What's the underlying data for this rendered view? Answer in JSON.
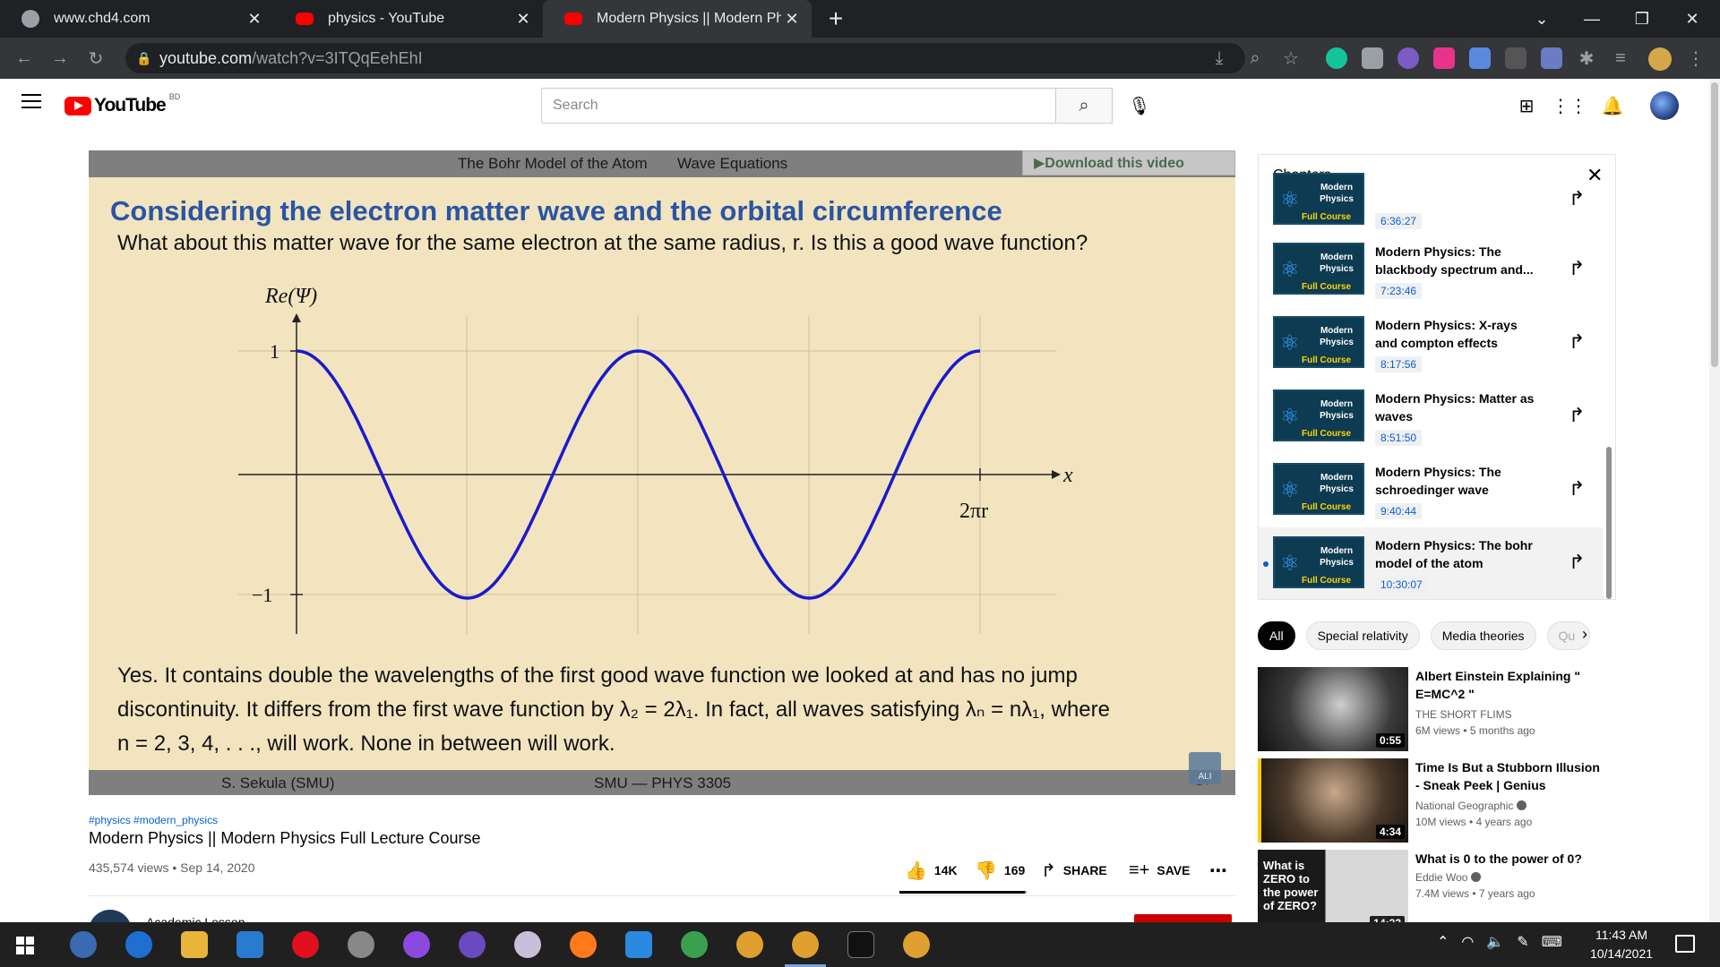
{
  "browser": {
    "tabs": [
      {
        "title": "www.chd4.com",
        "favicon": "globe-icon"
      },
      {
        "title": "physics - YouTube",
        "favicon": "youtube-icon"
      },
      {
        "title": "Modern Physics || Modern Physic",
        "favicon": "youtube-icon",
        "active": true
      }
    ],
    "new_tab": "+",
    "url_host": "youtube.com",
    "url_path": "/watch?v=3ITQqEehEhI"
  },
  "youtube": {
    "logo_text": "YouTube",
    "country_code": "BD",
    "search_placeholder": "Search"
  },
  "slide": {
    "nav_left": "The Bohr Model of the Atom",
    "nav_right": "Wave Equations",
    "download_label": "▶Download this video",
    "title": "Considering the electron matter wave and the orbital circumference",
    "question": "What about this matter wave for the same electron at the same radius, r. Is this a good wave function?",
    "answer_lines": [
      "Yes. It contains double the wavelengths of the first good wave function we looked at and has no jump",
      "discontinuity. It differs from the first wave function by λ₂ = 2λ₁. In fact, all waves satisfying λₙ = nλ₁, where",
      "n = 2, 3, 4, . . ., will work. None in between will work."
    ],
    "footer_left": "S. Sekula  (SMU)",
    "footer_center": "SMU — PHYS 3305",
    "page_number": "14",
    "badge_text": "ALI"
  },
  "chart_data": {
    "type": "line",
    "ylabel": "Re(Ψ)",
    "xlabel": "x",
    "x_tick_label": "2πr",
    "y_ticks": [
      "1",
      "−1"
    ],
    "function": "cos(2x/r)",
    "x_range_wavelengths": 2,
    "ylim": [
      -1,
      1
    ],
    "grid": true,
    "series_color": "#1a1acc"
  },
  "video": {
    "hashtags": "#physics #modern_physics",
    "title": "Modern Physics || Modern Physics Full Lecture Course",
    "meta": "435,574 views • Sep 14, 2020",
    "likes": "14K",
    "dislikes": "169",
    "share": "SHARE",
    "save": "SAVE",
    "channel": "Academic Lesson"
  },
  "chapters": {
    "heading": "Chapters",
    "thumb_line1": "Modern Physics",
    "thumb_line2": "Full Course",
    "items": [
      {
        "title": "",
        "time": "6:36:27"
      },
      {
        "title": "Modern Physics: The blackbody spectrum and...",
        "time": "7:23:46"
      },
      {
        "title": "Modern Physics: X-rays and compton effects",
        "time": "8:17:56"
      },
      {
        "title": "Modern Physics: Matter as waves",
        "time": "8:51:50"
      },
      {
        "title": "Modern Physics: The schroedinger wave eqation",
        "time": "9:40:44"
      },
      {
        "title": "Modern Physics: The bohr model of the atom",
        "time": "10:30:07",
        "active": true
      }
    ]
  },
  "chips": [
    "All",
    "Special relativity",
    "Media theories",
    "Qu"
  ],
  "recommendations": [
    {
      "title": "Albert Einstein Explaining \" E=MC^2 \"",
      "channel": "THE SHORT FLIMS",
      "views": "6M views • 5 months ago",
      "duration": "0:55"
    },
    {
      "title": "Time Is But a Stubborn Illusion - Sneak Peek | Genius",
      "channel": "National Geographic",
      "views": "10M views • 4 years ago",
      "duration": "4:34"
    },
    {
      "title": "What is 0 to the power of 0?",
      "channel": "Eddie Woo",
      "views": "7.4M views • 7 years ago",
      "duration": "14:22",
      "thumb_text": "What is ZERO to the power of ZERO?"
    }
  ],
  "taskbar": {
    "time": "11:43 AM",
    "date": "10/14/2021"
  }
}
